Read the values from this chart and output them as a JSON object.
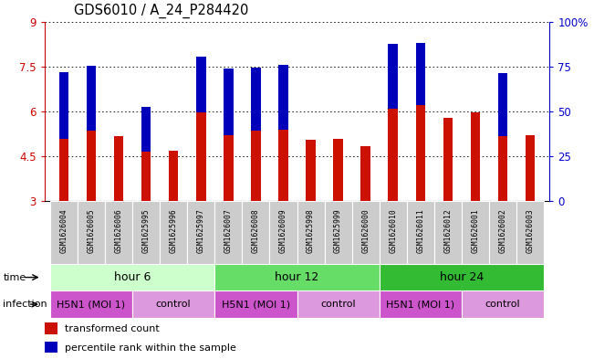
{
  "title": "GDS6010 / A_24_P284420",
  "samples": [
    "GSM1626004",
    "GSM1626005",
    "GSM1626006",
    "GSM1625995",
    "GSM1625996",
    "GSM1625997",
    "GSM1626007",
    "GSM1626008",
    "GSM1626009",
    "GSM1625998",
    "GSM1625999",
    "GSM1626000",
    "GSM1626010",
    "GSM1626011",
    "GSM1626012",
    "GSM1626001",
    "GSM1626002",
    "GSM1626003"
  ],
  "red_values": [
    5.08,
    5.35,
    5.18,
    4.65,
    4.68,
    5.97,
    5.2,
    5.35,
    5.38,
    5.05,
    5.08,
    4.82,
    6.1,
    6.2,
    5.78,
    5.97,
    5.18,
    5.2
  ],
  "blue_pct": [
    37,
    36,
    0,
    25,
    0,
    31,
    37,
    35,
    36,
    0,
    0,
    0,
    36,
    35,
    0,
    0,
    35,
    0
  ],
  "ymin": 3,
  "ymax": 9,
  "yticks": [
    3,
    4.5,
    6,
    7.5,
    9
  ],
  "ytick_labels": [
    "3",
    "4.5",
    "6",
    "7.5",
    "9"
  ],
  "y2ticks": [
    0,
    25,
    50,
    75,
    100
  ],
  "y2tick_labels": [
    "0",
    "25",
    "50",
    "75",
    "100%"
  ],
  "bar_width": 0.35,
  "red_color": "#cc1100",
  "blue_color": "#0000bb",
  "time_colors": [
    "#ccffcc",
    "#66dd66",
    "#33bb33"
  ],
  "time_groups": [
    {
      "label": "hour 6",
      "start": 0,
      "end": 6
    },
    {
      "label": "hour 12",
      "start": 6,
      "end": 12
    },
    {
      "label": "hour 24",
      "start": 12,
      "end": 18
    }
  ],
  "inf_groups": [
    {
      "label": "H5N1 (MOI 1)",
      "start": 0,
      "end": 3,
      "color": "#cc55cc"
    },
    {
      "label": "control",
      "start": 3,
      "end": 6,
      "color": "#dd99dd"
    },
    {
      "label": "H5N1 (MOI 1)",
      "start": 6,
      "end": 9,
      "color": "#cc55cc"
    },
    {
      "label": "control",
      "start": 9,
      "end": 12,
      "color": "#dd99dd"
    },
    {
      "label": "H5N1 (MOI 1)",
      "start": 12,
      "end": 15,
      "color": "#cc55cc"
    },
    {
      "label": "control",
      "start": 15,
      "end": 18,
      "color": "#dd99dd"
    }
  ],
  "sample_cell_color": "#cccccc",
  "bg_color": "#ffffff",
  "tick_label_color_left": "#cc0000",
  "tick_label_color_right": "#0000cc",
  "title_fontsize": 10.5
}
